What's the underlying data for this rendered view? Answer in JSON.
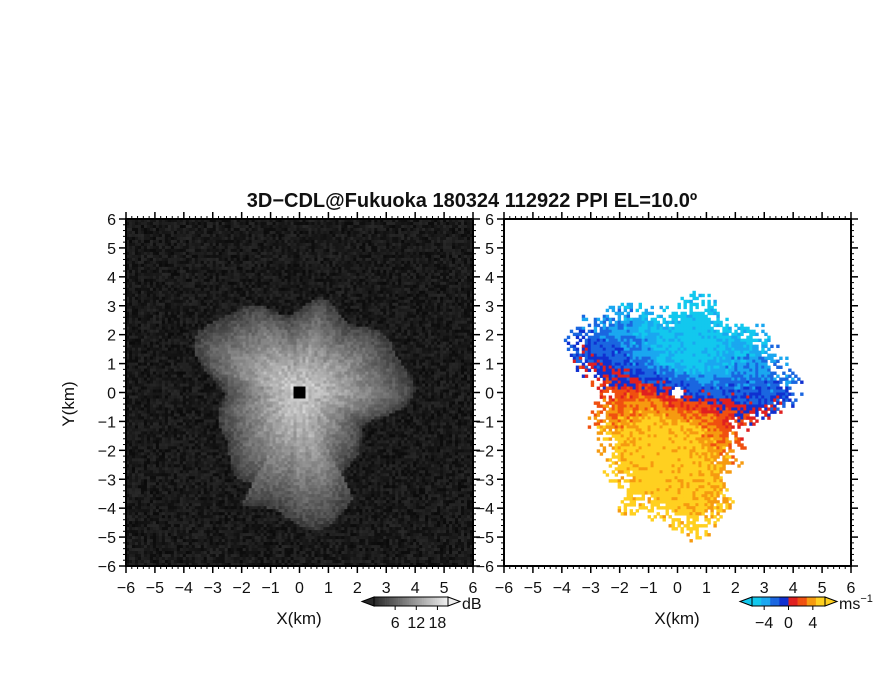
{
  "chart_data": {
    "title": "3D−CDL@Fukuoka 180324 112922 PPI EL=10.0º",
    "panels": [
      {
        "type": "heatmap",
        "xlabel": "X(km)",
        "ylabel": "Y(km)",
        "xlim": [
          -6,
          6
        ],
        "ylim": [
          -6,
          6
        ],
        "xticks": [
          "−6",
          "−5",
          "−4",
          "−3",
          "−2",
          "−1",
          "0",
          "1",
          "2",
          "3",
          "4",
          "5",
          "6"
        ],
        "yticks": [
          "−6",
          "−5",
          "−4",
          "−3",
          "−2",
          "−1",
          "0",
          "1",
          "2",
          "3",
          "4",
          "5",
          "6"
        ],
        "colormap": "grayscale",
        "colorbar": {
          "unit": "dB",
          "ticks": [
            "6",
            "12",
            "18"
          ],
          "tick_values": [
            6,
            12,
            18
          ],
          "range": [
            0,
            21
          ]
        }
      },
      {
        "type": "heatmap",
        "xlabel": "X(km)",
        "xlim": [
          -6,
          6
        ],
        "ylim": [
          -6,
          6
        ],
        "xticks": [
          "−6",
          "−5",
          "−4",
          "−3",
          "−2",
          "−1",
          "0",
          "1",
          "2",
          "3",
          "4",
          "5",
          "6"
        ],
        "yticks": [
          "−6",
          "−5",
          "−4",
          "−3",
          "−2",
          "−1",
          "0",
          "1",
          "2",
          "3",
          "4",
          "5",
          "6"
        ],
        "colormap": "blue-white-orange-yellow",
        "colorbar": {
          "unit": "ms",
          "unit_exponent": "−1",
          "ticks": [
            "−4",
            "0",
            "4"
          ],
          "tick_values": [
            -4,
            0,
            4
          ],
          "range": [
            -6,
            6
          ]
        }
      }
    ]
  },
  "colors": {
    "background": "#ffffff",
    "frame": "#000000",
    "approaching": "#1a66e0",
    "receding": "#f07010",
    "neutral_red": "#e02020",
    "fast_receding": "#ffd020"
  }
}
